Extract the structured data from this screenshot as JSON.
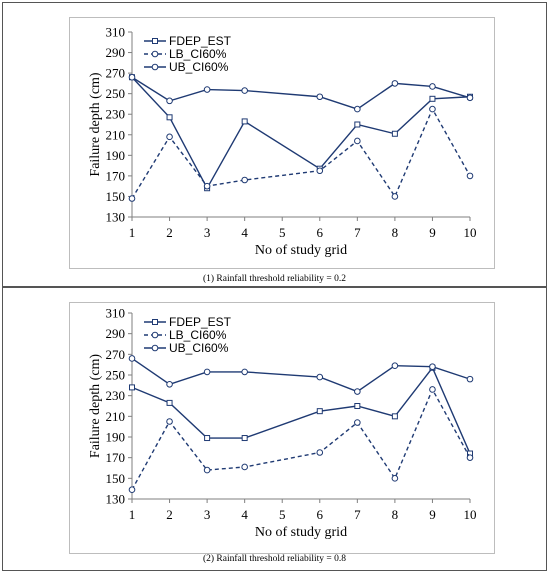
{
  "chart_data": [
    {
      "type": "line",
      "xlabel": "No of study grid",
      "ylabel": "Failure depth (cm)",
      "ylim": [
        130,
        310
      ],
      "yticks": [
        130,
        150,
        170,
        190,
        210,
        230,
        250,
        270,
        290,
        310
      ],
      "x": [
        1,
        2,
        3,
        4,
        6,
        7,
        8,
        9,
        10
      ],
      "xticks": [
        1,
        2,
        3,
        4,
        5,
        6,
        7,
        8,
        9,
        10
      ],
      "xlim": [
        1,
        10
      ],
      "legend_position": "top-left",
      "grid": false,
      "series": [
        {
          "name": "FDEP_EST",
          "marker": "square",
          "dash": "solid",
          "values": [
            266,
            227,
            158,
            223,
            177,
            220,
            211,
            245,
            247
          ]
        },
        {
          "name": "LB_CI60%",
          "marker": "circle",
          "dash": "dashed",
          "values": [
            148,
            208,
            160,
            166,
            175,
            204,
            150,
            235,
            170
          ]
        },
        {
          "name": "UB_CI60%",
          "marker": "circle",
          "dash": "solid",
          "values": [
            266,
            243,
            254,
            253,
            247,
            235,
            260,
            257,
            246
          ]
        }
      ],
      "caption": "(1) Rainfall threshold reliability = 0.2"
    },
    {
      "type": "line",
      "xlabel": "No of study grid",
      "ylabel": "Failure depth (cm)",
      "ylim": [
        130,
        310
      ],
      "yticks": [
        130,
        150,
        170,
        190,
        210,
        230,
        250,
        270,
        290,
        310
      ],
      "x": [
        1,
        2,
        3,
        4,
        6,
        7,
        8,
        9,
        10
      ],
      "xticks": [
        1,
        2,
        3,
        4,
        5,
        6,
        7,
        8,
        9,
        10
      ],
      "xlim": [
        1,
        10
      ],
      "legend_position": "top-left",
      "grid": false,
      "series": [
        {
          "name": "FDEP_EST",
          "marker": "square",
          "dash": "solid",
          "values": [
            238,
            223,
            189,
            189,
            215,
            220,
            210,
            257,
            174
          ]
        },
        {
          "name": "LB_CI60%",
          "marker": "circle",
          "dash": "dashed",
          "values": [
            139,
            205,
            158,
            161,
            175,
            204,
            150,
            236,
            170
          ]
        },
        {
          "name": "UB_CI60%",
          "marker": "circle",
          "dash": "solid",
          "values": [
            266,
            241,
            253,
            253,
            248,
            234,
            259,
            258,
            246
          ]
        }
      ],
      "caption": "(2) Rainfall threshold reliability = 0.8"
    }
  ],
  "colors": {
    "line": "#1f3a73",
    "axis": "#7f7f7f",
    "frame": "#bdbdbd"
  }
}
